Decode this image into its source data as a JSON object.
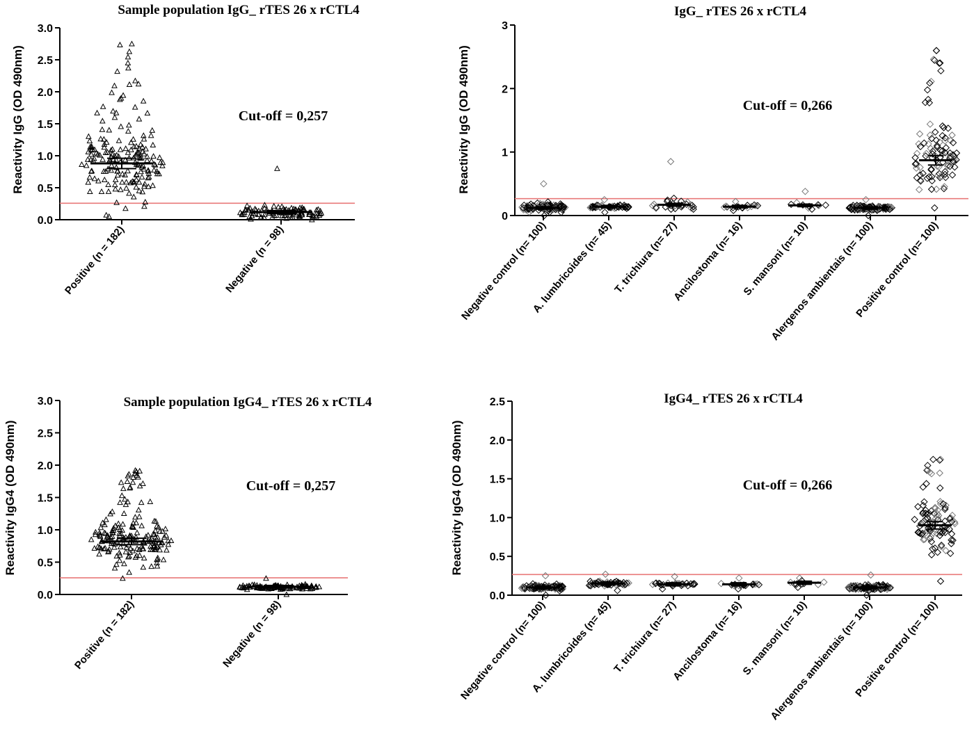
{
  "colors": {
    "cutoff_line": "#e87878",
    "axis": "#000000",
    "point": "#000000",
    "point_gray": "#777777"
  },
  "chart_data": [
    {
      "id": "p1",
      "type": "scatter",
      "title": "Sample population  IgG_ rTES  26 x rCTL4",
      "ylabel": "Reactivity  IgG  (OD 490nm)",
      "ylim": [
        0,
        3.0
      ],
      "yticks": [
        "0.0",
        "0.5",
        "1.0",
        "1.5",
        "2.0",
        "2.5",
        "3.0"
      ],
      "ytick_values": [
        0,
        0.5,
        1.0,
        1.5,
        2.0,
        2.5,
        3.0
      ],
      "cutoff_label": "Cut-off = 0,257",
      "cutoff": 0.257,
      "marker": "triangle",
      "grid": false,
      "groups": [
        {
          "label": "Positive (n = 182)",
          "n": 182,
          "mean": 0.88,
          "min": 0.05,
          "max": 2.75
        },
        {
          "label": "Negative (n = 98)",
          "n": 98,
          "mean": 0.12,
          "min": 0.0,
          "max": 0.8
        }
      ]
    },
    {
      "id": "p2",
      "type": "scatter",
      "title": "IgG_ rTES  26 x rCTL4",
      "ylabel": "Reactivity  IgG  (OD 490nm)",
      "ylim": [
        0,
        3
      ],
      "yticks": [
        "0",
        "1",
        "2",
        "3"
      ],
      "ytick_values": [
        0,
        1,
        2,
        3
      ],
      "cutoff_label": "Cut-off = 0,266",
      "cutoff": 0.266,
      "marker": "diamond",
      "grid": false,
      "groups": [
        {
          "label": "Negative control (n= 100)",
          "n": 100,
          "mean": 0.12,
          "min": 0.0,
          "max": 0.5
        },
        {
          "label": "A. lumbricoides (n= 45)",
          "n": 45,
          "mean": 0.14,
          "min": 0.05,
          "max": 0.25
        },
        {
          "label": "T. trichiura (n= 27)",
          "n": 27,
          "mean": 0.17,
          "min": 0.1,
          "max": 0.85
        },
        {
          "label": "Ancilostoma (n= 16)",
          "n": 16,
          "mean": 0.14,
          "min": 0.08,
          "max": 0.22
        },
        {
          "label": "S. mansoni (n= 10)",
          "n": 10,
          "mean": 0.16,
          "min": 0.1,
          "max": 0.38
        },
        {
          "label": "Alergenos ambientais (n= 100)",
          "n": 100,
          "mean": 0.12,
          "min": 0.0,
          "max": 0.25
        },
        {
          "label": "Positive control (n= 100)",
          "n": 100,
          "mean": 0.87,
          "min": 0.12,
          "max": 2.6
        }
      ]
    },
    {
      "id": "p3",
      "type": "scatter",
      "title": "Sample population  IgG4_ rTES  26 x rCTL4",
      "ylabel": "Reactivity  IgG4  (OD 490nm)",
      "ylim": [
        0,
        3.0
      ],
      "yticks": [
        "0.0",
        "0.5",
        "1.0",
        "1.5",
        "2.0",
        "2.5",
        "3.0"
      ],
      "ytick_values": [
        0,
        0.5,
        1.0,
        1.5,
        2.0,
        2.5,
        3.0
      ],
      "cutoff_label": "Cut-off = 0,257",
      "cutoff": 0.257,
      "marker": "triangle",
      "grid": false,
      "groups": [
        {
          "label": "Positive (n = 182)",
          "n": 182,
          "mean": 0.82,
          "min": 0.25,
          "max": 1.92
        },
        {
          "label": "Negative (n = 98)",
          "n": 98,
          "mean": 0.12,
          "min": 0.0,
          "max": 0.25
        }
      ]
    },
    {
      "id": "p4",
      "type": "scatter",
      "title": "IgG4_ rTES  26 x rCTL4",
      "ylabel": "Reactivity  IgG4  (OD 490nm)",
      "ylim": [
        0,
        2.5
      ],
      "yticks": [
        "0.0",
        "0.5",
        "1.0",
        "1.5",
        "2.0",
        "2.5"
      ],
      "ytick_values": [
        0,
        0.5,
        1.0,
        1.5,
        2.0,
        2.5
      ],
      "cutoff_label": "Cut-off = 0,266",
      "cutoff": 0.266,
      "marker": "diamond",
      "grid": false,
      "groups": [
        {
          "label": "Negative control (n= 100)",
          "n": 100,
          "mean": 0.1,
          "min": 0.0,
          "max": 0.25
        },
        {
          "label": "A. lumbricoides (n= 45)",
          "n": 45,
          "mean": 0.15,
          "min": 0.06,
          "max": 0.27
        },
        {
          "label": "T. trichiura (n= 27)",
          "n": 27,
          "mean": 0.14,
          "min": 0.08,
          "max": 0.24
        },
        {
          "label": "Ancilostoma (n= 16)",
          "n": 16,
          "mean": 0.14,
          "min": 0.08,
          "max": 0.22
        },
        {
          "label": "S. mansoni (n= 10)",
          "n": 10,
          "mean": 0.16,
          "min": 0.1,
          "max": 0.22
        },
        {
          "label": "Alergenos ambientais (n= 100)",
          "n": 100,
          "mean": 0.1,
          "min": 0.0,
          "max": 0.26
        },
        {
          "label": "Positive control (n= 100)",
          "n": 100,
          "mean": 0.9,
          "min": 0.18,
          "max": 1.75
        }
      ]
    }
  ]
}
